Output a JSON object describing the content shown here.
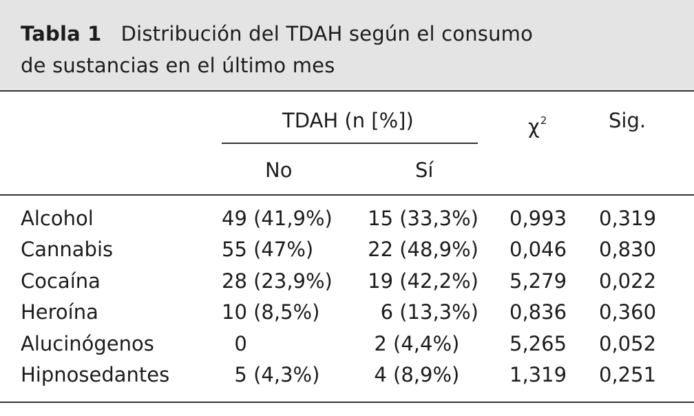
{
  "caption": {
    "label": "Tabla 1",
    "line1": "Distribución del TDAH según el consumo",
    "line2": "de sustancias en el último mes"
  },
  "header": {
    "group": "TDAH (n [%])",
    "chi_symbol": "χ",
    "chi_sup": "2",
    "sig": "Sig.",
    "no": "No",
    "si": "Sí"
  },
  "rows": [
    {
      "name": "Alcohol",
      "no": "49 (41,9%)",
      "si": "15 (33,3%)",
      "chi": "0,993",
      "sig": "0,319"
    },
    {
      "name": "Cannabis",
      "no": "55 (47%)",
      "si": "22 (48,9%)",
      "chi": "0,046",
      "sig": "0,830"
    },
    {
      "name": "Cocaína",
      "no": "28 (23,9%)",
      "si": "19 (42,2%)",
      "chi": "5,279",
      "sig": "0,022"
    },
    {
      "name": "Heroína",
      "no": "10 (8,5%)",
      "si": "6 (13,3%)",
      "chi": "0,836",
      "sig": "0,360"
    },
    {
      "name": "Alucinógenos",
      "no": "  0",
      "si": "2 (4,4%)   ",
      "chi": "5,265",
      "sig": "0,052"
    },
    {
      "name": "Hipnosedantes",
      "no": "  5 (4,3%)",
      "si": "4 (8,9%)   ",
      "chi": "1,319",
      "sig": "0,251"
    }
  ]
}
